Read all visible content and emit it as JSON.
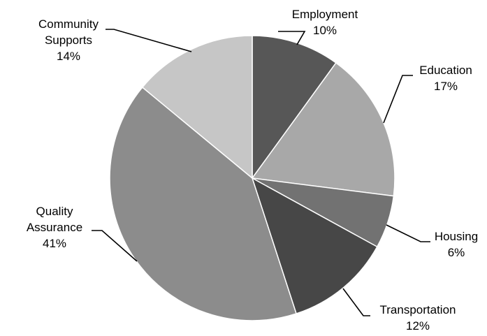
{
  "chart_data": {
    "type": "pie",
    "title": "",
    "slices": [
      {
        "label_lines": [
          "Employment"
        ],
        "value": 10,
        "percent_label": "10%",
        "color": "#575757"
      },
      {
        "label_lines": [
          "Education"
        ],
        "value": 17,
        "percent_label": "17%",
        "color": "#a8a8a8"
      },
      {
        "label_lines": [
          "Housing"
        ],
        "value": 6,
        "percent_label": "6%",
        "color": "#727272"
      },
      {
        "label_lines": [
          "Transportation"
        ],
        "value": 12,
        "percent_label": "12%",
        "color": "#474747"
      },
      {
        "label_lines": [
          "Quality",
          "Assurance"
        ],
        "value": 41,
        "percent_label": "41%",
        "color": "#8c8c8c"
      },
      {
        "label_lines": [
          "Community",
          "Supports"
        ],
        "value": 14,
        "percent_label": "14%",
        "color": "#c6c6c6"
      }
    ],
    "start_angle_deg": 0,
    "direction": "clockwise",
    "legend": "none"
  }
}
